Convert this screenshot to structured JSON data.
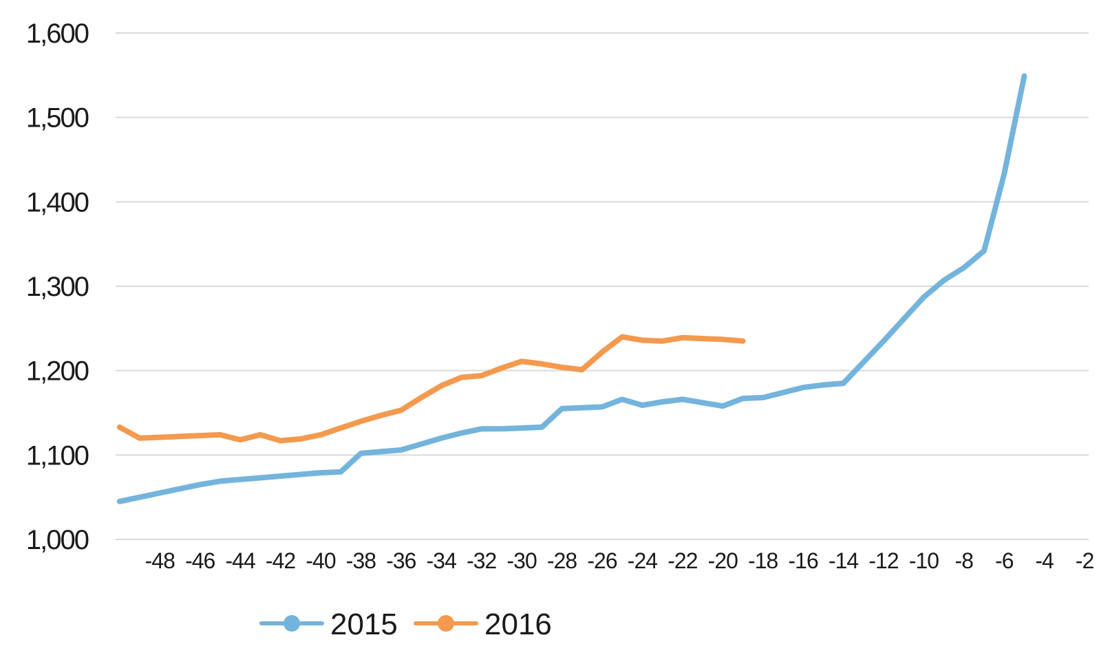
{
  "chart_data": {
    "type": "line",
    "title": "",
    "xlabel": "",
    "ylabel": "",
    "x": [
      -50,
      -49,
      -48,
      -47,
      -46,
      -45,
      -44,
      -43,
      -42,
      -41,
      -40,
      -39,
      -38,
      -37,
      -36,
      -35,
      -34,
      -33,
      -32,
      -31,
      -30,
      -29,
      -28,
      -27,
      -26,
      -25,
      -24,
      -23,
      -22,
      -21,
      -20,
      -19,
      -18,
      -17,
      -16,
      -15,
      -14,
      -13,
      -12,
      -11,
      -10,
      -9,
      -8,
      -7,
      -6,
      -5,
      -4,
      -3,
      -2
    ],
    "x_tick_labels": [
      "-48",
      "-46",
      "-44",
      "-42",
      "-40",
      "-38",
      "-36",
      "-34",
      "-32",
      "-30",
      "-28",
      "-26",
      "-24",
      "-22",
      "-20",
      "-18",
      "-16",
      "-14",
      "-12",
      "-10",
      "-8",
      "-6",
      "-4",
      "-2"
    ],
    "x_tick_values": [
      -48,
      -46,
      -44,
      -42,
      -40,
      -38,
      -36,
      -34,
      -32,
      -30,
      -28,
      -26,
      -24,
      -22,
      -20,
      -18,
      -16,
      -14,
      -12,
      -10,
      -8,
      -6,
      -4,
      -2
    ],
    "xlim": [
      -50.2,
      -1.8
    ],
    "y_tick_labels": [
      "1,000",
      "1,100",
      "1,200",
      "1,300",
      "1,400",
      "1,500",
      "1,600"
    ],
    "y_tick_values": [
      1000,
      1100,
      1200,
      1300,
      1400,
      1500,
      1600
    ],
    "ylim": [
      1000,
      1600
    ],
    "grid": true,
    "legend_position": "bottom",
    "series": [
      {
        "name": "2015",
        "color": "#74b4dc",
        "values": [
          1045,
          1050,
          1055,
          1060,
          1065,
          1069,
          1071,
          1073,
          1075,
          1077,
          1079,
          1080,
          1102,
          1104,
          1106,
          1113,
          1120,
          1126,
          1131,
          1131,
          1132,
          1133,
          1155,
          1156,
          1157,
          1166,
          1159,
          1163,
          1166,
          1162,
          1158,
          1167,
          1168,
          1174,
          1180,
          1183,
          1185,
          1210,
          1235,
          1261,
          1287,
          1307,
          1322,
          1342,
          1433,
          1549,
          null,
          null,
          null
        ]
      },
      {
        "name": "2016",
        "color": "#f39a4f",
        "values": [
          1133,
          1120,
          1121,
          1122,
          1123,
          1124,
          1118,
          1124,
          1117,
          1119,
          1124,
          1132,
          1140,
          1147,
          1153,
          1168,
          1182,
          1192,
          1194,
          1203,
          1211,
          1208,
          1204,
          1201,
          1222,
          1240,
          1236,
          1235,
          1239,
          1238,
          1237,
          1235,
          null,
          null,
          null,
          null,
          null,
          null,
          null,
          null,
          null,
          null,
          null,
          null,
          null,
          null,
          null,
          null,
          null
        ]
      }
    ]
  }
}
